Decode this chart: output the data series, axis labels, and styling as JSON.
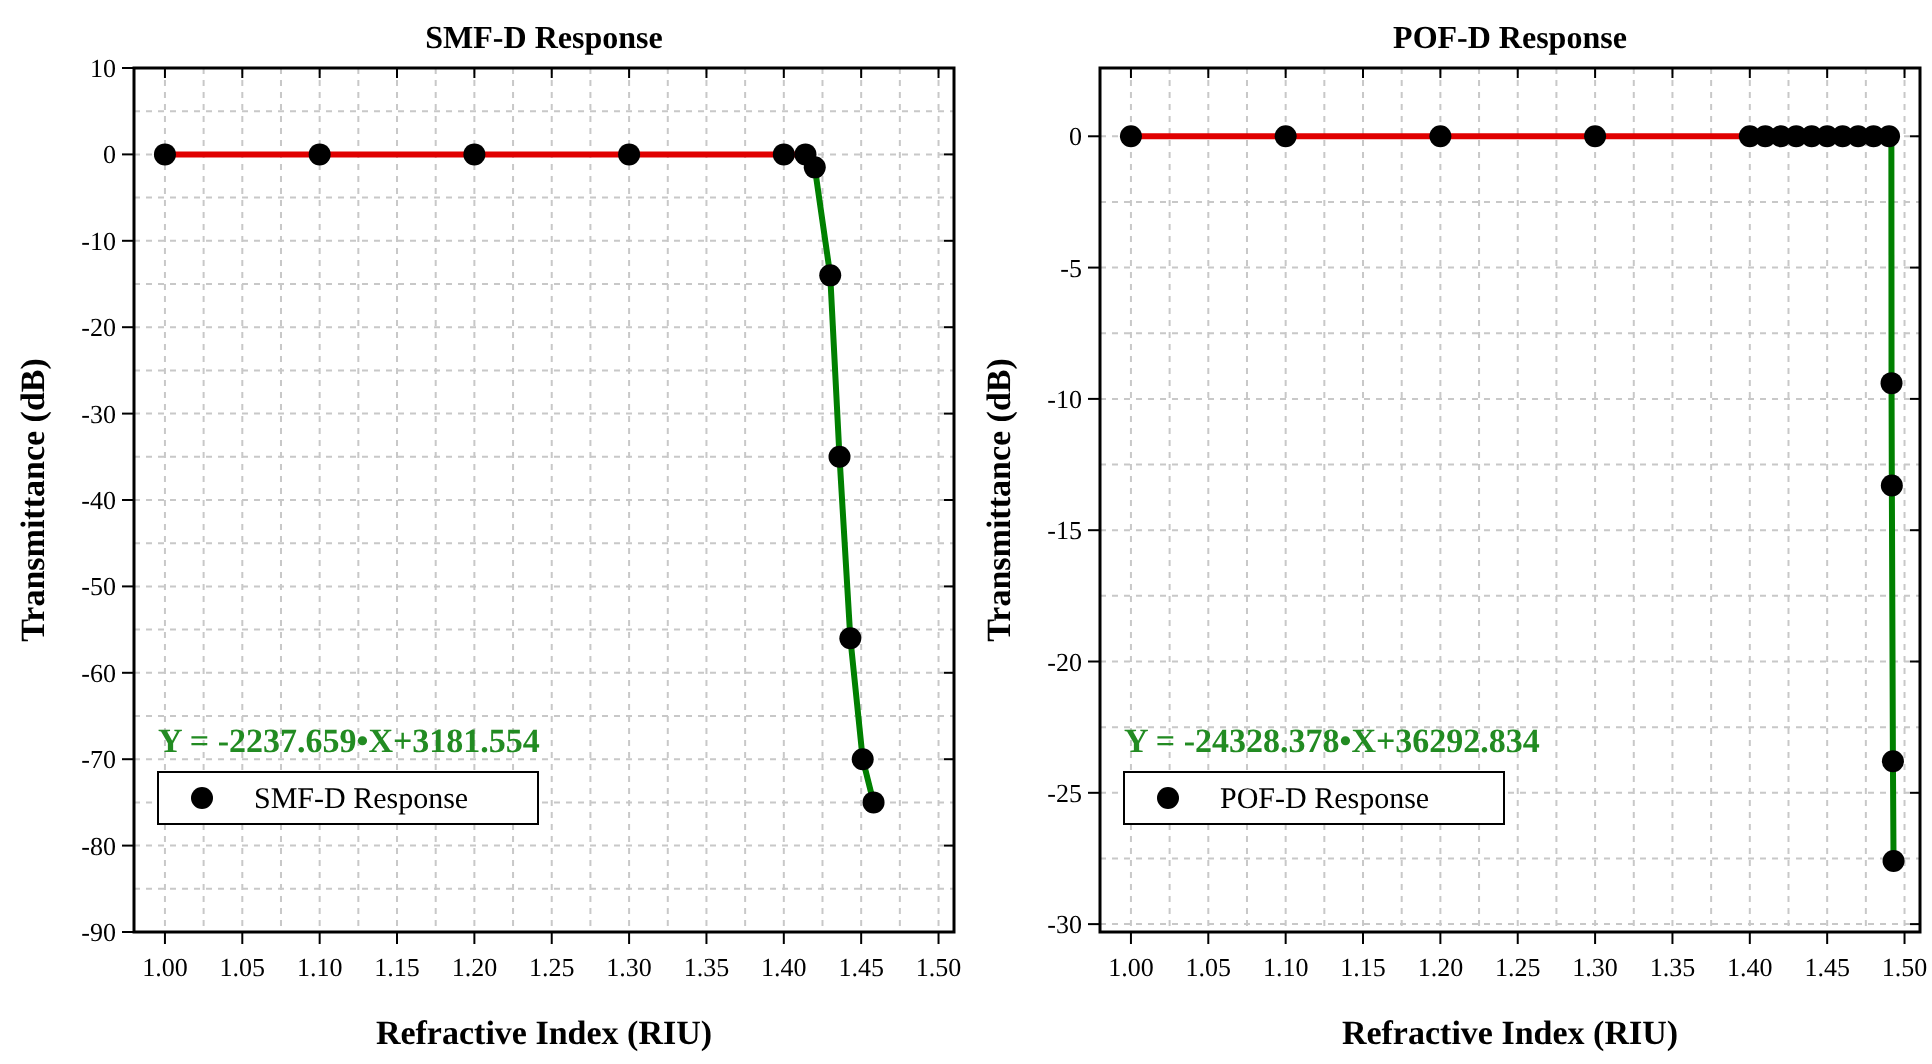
{
  "chart_data": [
    {
      "type": "scatter",
      "title": "SMF-D Response",
      "xlabel": "Refractive Index (RIU)",
      "ylabel": "Transmittance (dB)",
      "annotations": [
        "Y = -2237.659•X+3181.554"
      ],
      "xlim": [
        0.98,
        1.51
      ],
      "xticks": [
        {
          "value": 1,
          "label": "1.00"
        },
        1.05,
        {
          "value": 1.1,
          "label": "1.10"
        },
        1.15,
        {
          "value": 1.2,
          "label": "1.20"
        },
        1.25,
        {
          "value": 1.3,
          "label": "1.30"
        },
        1.35,
        {
          "value": 1.4,
          "label": "1.40"
        },
        1.45,
        {
          "value": 1.5,
          "label": "1.50"
        }
      ],
      "ylim": [
        -90,
        10
      ],
      "yticks": [
        -90,
        -80,
        -70,
        -60,
        -50,
        -40,
        -30,
        -20,
        -10,
        0,
        10
      ],
      "grid": true,
      "legend": "bottom left",
      "series": [
        {
          "type": "line",
          "color": "#e00000",
          "x": [
            1.0,
            1.42
          ],
          "values": [
            0,
            0
          ],
          "marker": "none"
        },
        {
          "type": "line",
          "color": "#008000",
          "x": [
            1.42,
            1.43,
            1.436,
            1.443,
            1.451,
            1.458
          ],
          "values": [
            -1.5,
            -14,
            -35,
            -56,
            -70,
            -75
          ],
          "marker": "none"
        },
        {
          "name": "SMF-D Response",
          "color": "#000000",
          "marker": "circle",
          "x": [
            1.0,
            1.1,
            1.2,
            1.3,
            1.4,
            1.414,
            1.42,
            1.43,
            1.436,
            1.443,
            1.451,
            1.458
          ],
          "values": [
            0,
            0,
            0,
            0,
            0,
            0,
            -1.5,
            -14,
            -35,
            -56,
            -70,
            -75
          ]
        }
      ]
    },
    {
      "type": "scatter",
      "title": "POF-D Response",
      "xlabel": "Refractive Index (RIU)",
      "ylabel": "Transmittance (dB)",
      "annotations": [
        "Y = -24328.378•X+36292.834"
      ],
      "xlim": [
        0.98,
        1.51
      ],
      "xticks": [
        {
          "value": 1,
          "label": "1.00"
        },
        1.05,
        {
          "value": 1.1,
          "label": "1.10"
        },
        1.15,
        {
          "value": 1.2,
          "label": "1.20"
        },
        1.25,
        {
          "value": 1.3,
          "label": "1.30"
        },
        1.35,
        {
          "value": 1.4,
          "label": "1.40"
        },
        1.45,
        {
          "value": 1.5,
          "label": "1.50"
        }
      ],
      "ylim": [
        -30.3,
        2.6
      ],
      "yticks": [
        -30,
        -25,
        -20,
        -15,
        -10,
        -5,
        0
      ],
      "grid": true,
      "legend": "bottom left",
      "series": [
        {
          "type": "line",
          "color": "#e00000",
          "x": [
            1.0,
            1.49
          ],
          "values": [
            0,
            0
          ],
          "marker": "none"
        },
        {
          "type": "line",
          "color": "#008000",
          "x": [
            1.4915,
            1.4916,
            1.4918,
            1.4925,
            1.4929
          ],
          "values": [
            0,
            -9.4,
            -13.3,
            -23.8,
            -27.6
          ],
          "marker": "none"
        },
        {
          "name": "POF-D Response",
          "color": "#000000",
          "marker": "circle",
          "x": [
            1.0,
            1.1,
            1.2,
            1.3,
            1.4,
            1.41,
            1.42,
            1.43,
            1.44,
            1.45,
            1.46,
            1.47,
            1.48,
            1.49,
            1.4916,
            1.4918,
            1.4925,
            1.4929
          ],
          "values": [
            0,
            0,
            0,
            0,
            0,
            0,
            0,
            0,
            0,
            0,
            0,
            0,
            0,
            0,
            -9.4,
            -13.3,
            -23.8,
            -27.6
          ]
        }
      ]
    }
  ]
}
